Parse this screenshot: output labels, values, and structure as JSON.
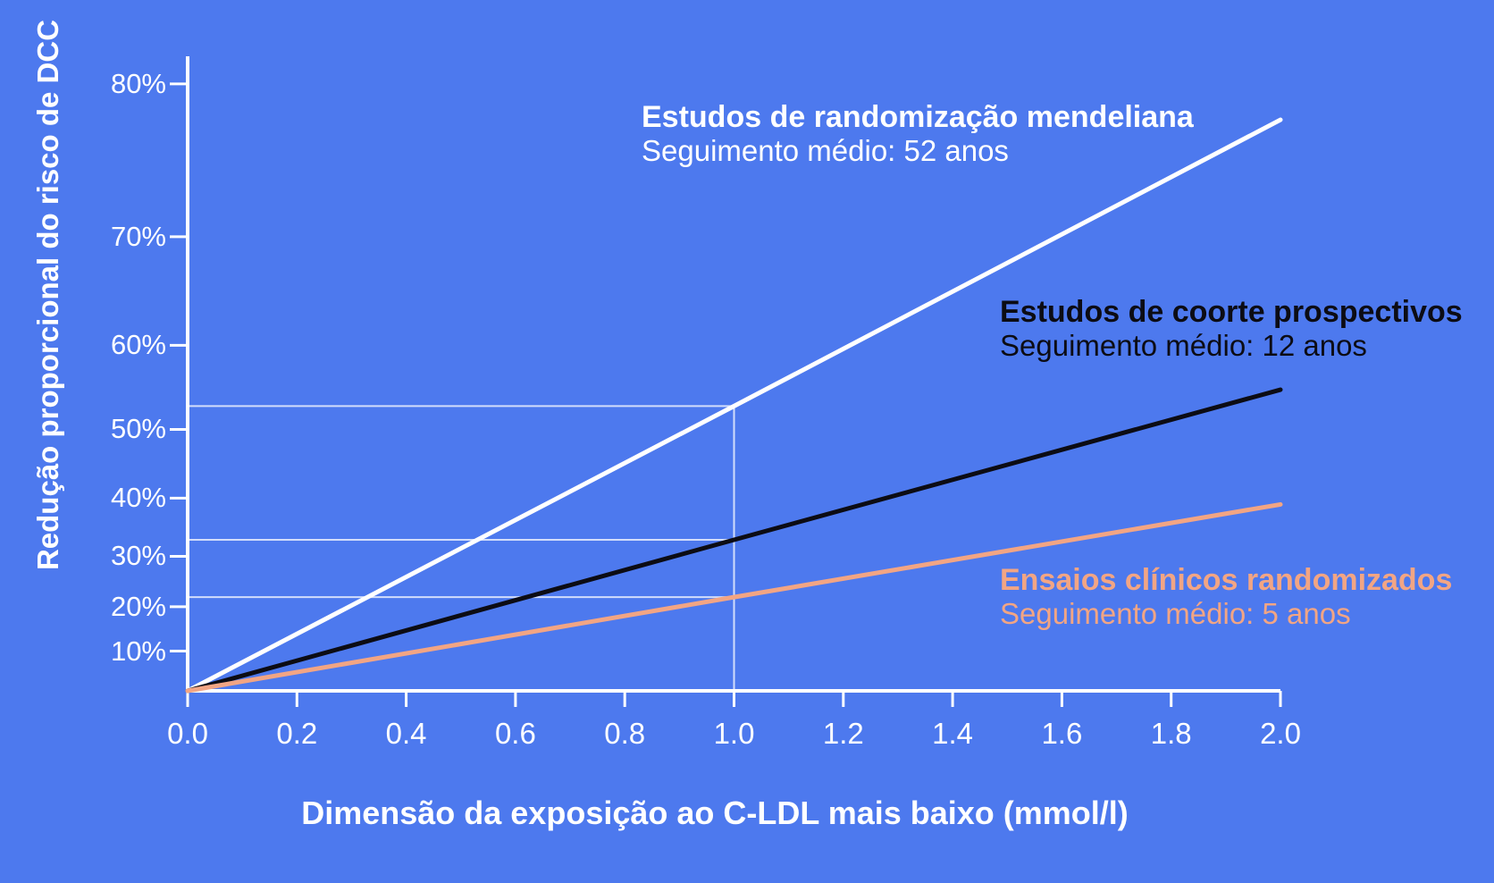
{
  "colors": {
    "background": "#4d79ee",
    "axis": "#ffffff",
    "tick_label": "#ffffff",
    "reference_line": "rgba(255,255,255,0.75)",
    "series_mendelian": "#ffffff",
    "series_cohort": "#0c0c14",
    "series_rct": "#f2a584"
  },
  "chart_data": {
    "type": "line",
    "title": "",
    "xlabel": "Dimensão da exposição ao C-LDL mais baixo (mmol/l)",
    "ylabel": "Redução proporcional do risco de DCC",
    "xlim": [
      0,
      2
    ],
    "x_ticks": [
      "0.0",
      "0.2",
      "0.4",
      "0.6",
      "0.8",
      "1.0",
      "1.2",
      "1.4",
      "1.6",
      "1.8",
      "2.0"
    ],
    "y_ticks": [
      "80%",
      "70%",
      "60%",
      "50%",
      "40%",
      "30%",
      "20%",
      "10%"
    ],
    "y_scale": "logarithmic in (1 - risk reduction); straight lines = constant proportional effect per mmol/l",
    "grid": "off",
    "legend_position": "labels next to lines",
    "series": [
      {
        "id": "mendelian",
        "name": "Estudos de randomização mendeliana",
        "subtitle": "Seguimento médio: 52 anos",
        "color": "#ffffff",
        "x": [
          0,
          1,
          2
        ],
        "values_pct": [
          0,
          53,
          78
        ]
      },
      {
        "id": "cohort",
        "name": "Estudos de coorte prospectivos",
        "subtitle": "Seguimento médio: 12 anos",
        "color": "#0c0c14",
        "x": [
          0,
          1,
          2
        ],
        "values_pct": [
          0,
          33,
          55
        ]
      },
      {
        "id": "rct",
        "name": "Ensaios clínicos randomizados",
        "subtitle": "Seguimento médio: 5 anos",
        "color": "#f2a584",
        "x": [
          0,
          1,
          2
        ],
        "values_pct": [
          0,
          22,
          39
        ]
      }
    ],
    "reference": {
      "x": 1.0,
      "values_pct": [
        53,
        33,
        22
      ]
    }
  }
}
